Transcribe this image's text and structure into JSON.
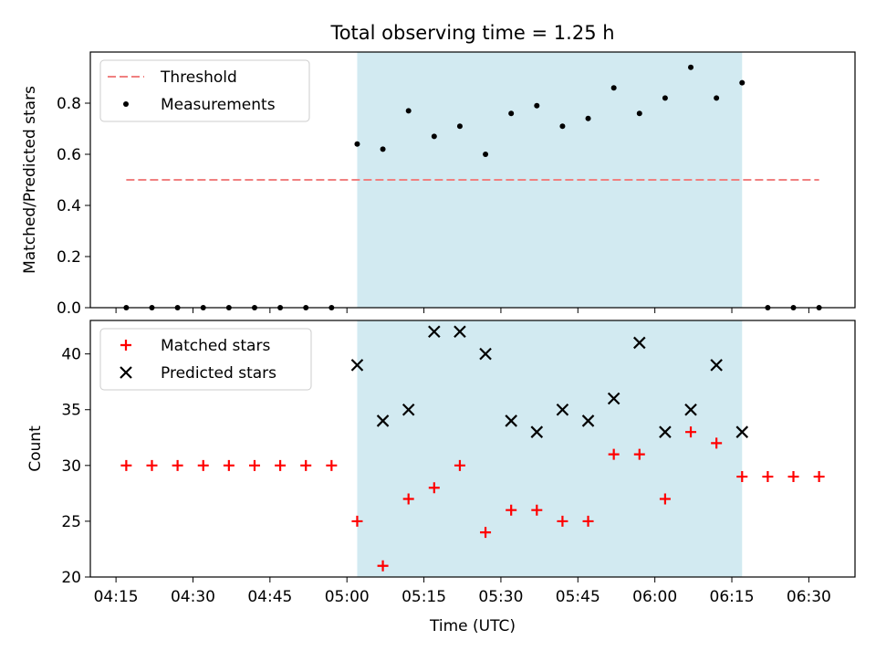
{
  "chart_data": [
    {
      "type": "scatter",
      "title": "Total observing time = 1.25 h",
      "xlabel": "",
      "ylabel": "Matched/Predicted stars",
      "ylim": [
        0,
        1.0
      ],
      "yticks": [
        "0.0",
        "0.2",
        "0.4",
        "0.6",
        "0.8"
      ],
      "highlight_span": [
        "05:02",
        "06:17"
      ],
      "highlight_color": "#add8e6",
      "legend_position": "upper-left",
      "series": [
        {
          "name": "Threshold",
          "style": "dashed-line",
          "color": "#f08080",
          "x": [
            "04:17",
            "06:32"
          ],
          "y": [
            0.5,
            0.5
          ]
        },
        {
          "name": "Measurements",
          "style": "dot",
          "color": "#000000",
          "x": [
            "04:17",
            "04:22",
            "04:27",
            "04:32",
            "04:37",
            "04:42",
            "04:47",
            "04:52",
            "04:57",
            "05:02",
            "05:07",
            "05:12",
            "05:17",
            "05:22",
            "05:27",
            "05:32",
            "05:37",
            "05:42",
            "05:47",
            "05:52",
            "05:57",
            "06:02",
            "06:07",
            "06:12",
            "06:17",
            "06:22",
            "06:27",
            "06:32"
          ],
          "y": [
            0,
            0,
            0,
            0,
            0,
            0,
            0,
            0,
            0,
            0.64,
            0.62,
            0.77,
            0.67,
            0.71,
            0.6,
            0.76,
            0.79,
            0.71,
            0.74,
            0.86,
            0.76,
            0.82,
            0.94,
            0.82,
            0.88,
            0,
            0,
            0
          ]
        }
      ]
    },
    {
      "type": "scatter",
      "title": "",
      "xlabel": "Time (UTC)",
      "ylabel": "Count",
      "ylim": [
        20,
        43
      ],
      "yticks": [
        "20",
        "25",
        "30",
        "35",
        "40"
      ],
      "xticks": [
        "04:15",
        "04:30",
        "04:45",
        "05:00",
        "05:15",
        "05:30",
        "05:45",
        "06:00",
        "06:15",
        "06:30"
      ],
      "highlight_span": [
        "05:02",
        "06:17"
      ],
      "highlight_color": "#add8e6",
      "legend_position": "upper-left",
      "series": [
        {
          "name": "Matched stars",
          "style": "plus",
          "color": "#ff0000",
          "x": [
            "04:17",
            "04:22",
            "04:27",
            "04:32",
            "04:37",
            "04:42",
            "04:47",
            "04:52",
            "04:57",
            "05:02",
            "05:07",
            "05:12",
            "05:17",
            "05:22",
            "05:27",
            "05:32",
            "05:37",
            "05:42",
            "05:47",
            "05:52",
            "05:57",
            "06:02",
            "06:07",
            "06:12",
            "06:17",
            "06:22",
            "06:27",
            "06:32"
          ],
          "y": [
            30,
            30,
            30,
            30,
            30,
            30,
            30,
            30,
            30,
            25,
            21,
            27,
            28,
            30,
            24,
            26,
            26,
            25,
            25,
            31,
            31,
            27,
            33,
            32,
            29,
            29,
            29,
            29
          ]
        },
        {
          "name": "Predicted stars",
          "style": "x",
          "color": "#000000",
          "x": [
            "05:02",
            "05:07",
            "05:12",
            "05:17",
            "05:22",
            "05:27",
            "05:32",
            "05:37",
            "05:42",
            "05:47",
            "05:52",
            "05:57",
            "06:02",
            "06:07",
            "06:12",
            "06:17"
          ],
          "y": [
            39,
            34,
            35,
            42,
            42,
            40,
            34,
            33,
            35,
            34,
            36,
            41,
            33,
            35,
            39,
            33
          ]
        }
      ]
    }
  ]
}
